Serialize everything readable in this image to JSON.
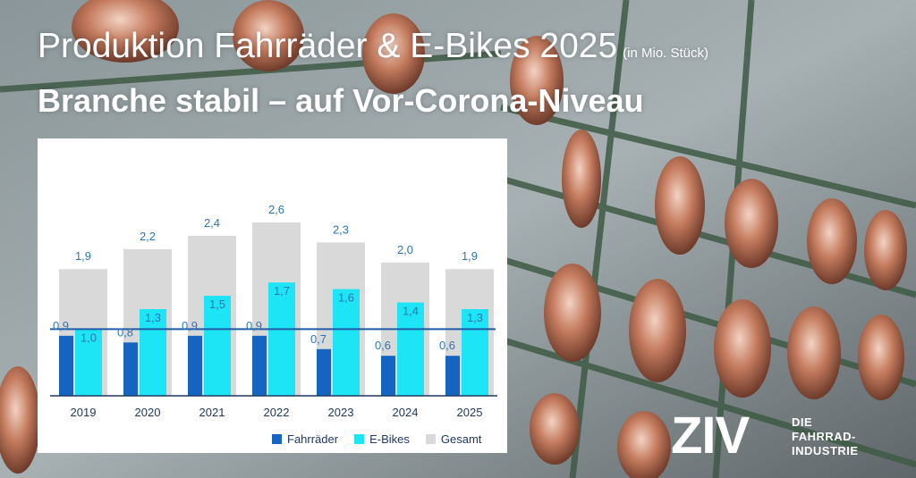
{
  "header": {
    "title": "Produktion Fahrräder & E-Bikes 2025",
    "unit": "(in Mio. Stück)",
    "subtitle": "Branche stabil – auf Vor-Corona-Niveau"
  },
  "logo": {
    "mark": "ZIV",
    "lines": [
      "DIE",
      "FAHRRAD-",
      "INDUSTRIE"
    ]
  },
  "colors": {
    "fahrraeder": "#1565c0",
    "ebikes": "#1de5f5",
    "gesamt": "#d9d9d9",
    "label_text": "#2e75b6",
    "reference_line": "#1f5ca8",
    "axis": "#1f3864"
  },
  "chart_data": {
    "type": "bar",
    "categories": [
      "2019",
      "2020",
      "2021",
      "2022",
      "2023",
      "2024",
      "2025"
    ],
    "series": [
      {
        "name": "Fahrräder",
        "values": [
          0.9,
          0.8,
          0.9,
          0.9,
          0.7,
          0.6,
          0.6
        ],
        "labels": [
          "0,9",
          "0,8",
          "0,9",
          "0,9",
          "0,7",
          "0,6",
          "0,6"
        ]
      },
      {
        "name": "E-Bikes",
        "values": [
          1.0,
          1.3,
          1.5,
          1.7,
          1.6,
          1.4,
          1.3
        ],
        "labels": [
          "1,0",
          "1,3",
          "1,5",
          "1,7",
          "1,6",
          "1,4",
          "1,3"
        ]
      },
      {
        "name": "Gesamt",
        "values": [
          1.9,
          2.2,
          2.4,
          2.6,
          2.3,
          2.0,
          1.9
        ],
        "labels": [
          "1,9",
          "2,2",
          "2,4",
          "2,6",
          "2,3",
          "2,0",
          "1,9"
        ]
      }
    ],
    "reference_line": {
      "value": 1.0
    },
    "ylim": [
      0,
      2.6
    ],
    "grid": false,
    "legend_position": "bottom"
  }
}
